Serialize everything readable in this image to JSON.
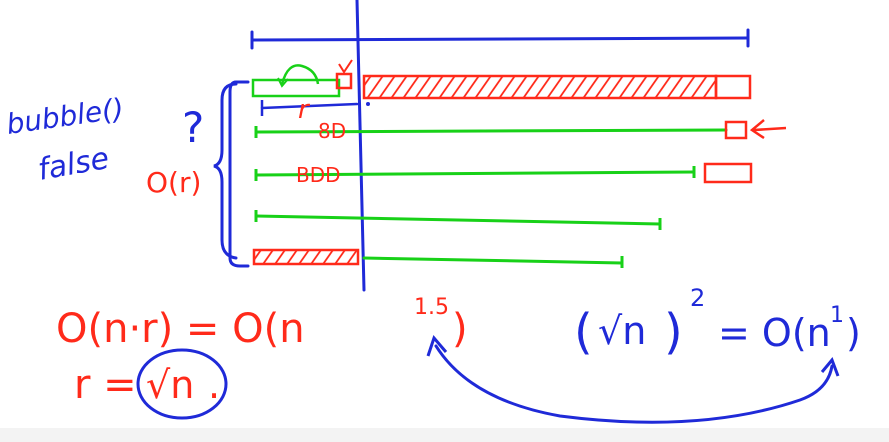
{
  "colors": {
    "blue": "#1f2ad8",
    "red": "#ff2a1a",
    "green": "#18d118",
    "background": "#ffffff"
  },
  "annotations": {
    "bubble_label": "bubble()",
    "false_label": "false",
    "question_mark": "?",
    "o_r": "O(r)",
    "r_marker": "r",
    "ticks_row2": "8D",
    "ticks_row3": "BDD",
    "arrow_head": "←"
  },
  "equations": {
    "complexity": "O(n·r) = O(n",
    "complexity_exp": "1.5",
    "complexity_close": ")",
    "r_eq": "r =",
    "r_value": "√n",
    "r_dot": ".",
    "sqrt_sq_open": "(",
    "sqrt_sq_inner": "√n",
    "sqrt_sq_close": ")",
    "sqrt_sq_exp": "2",
    "sqrt_sq_rhs": "= O(n",
    "sqrt_sq_rhs_exp": "1",
    "sqrt_sq_rhs_close": ")"
  }
}
